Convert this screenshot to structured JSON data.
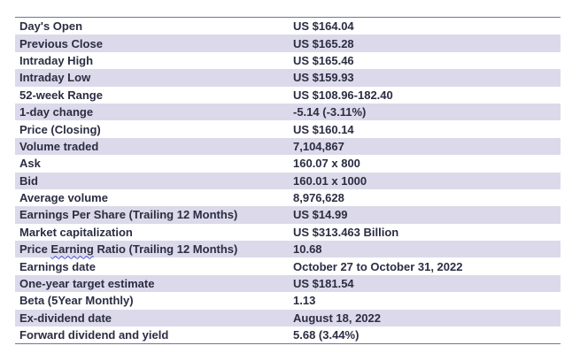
{
  "rows": [
    {
      "label": "Day's Open",
      "value": "US $164.04"
    },
    {
      "label": "Previous Close",
      "value": "US $165.28"
    },
    {
      "label": "Intraday High",
      "value": "US $165.46"
    },
    {
      "label": "Intraday Low",
      "value": "US $159.93"
    },
    {
      "label": "52-week Range",
      "value": "US $108.96-182.40"
    },
    {
      "label": "1-day change",
      "value": "-5.14 (-3.11%)"
    },
    {
      "label": "Price (Closing)",
      "value": "US $160.14"
    },
    {
      "label": "Volume traded",
      "value": "7,104,867"
    },
    {
      "label": "Ask",
      "value": "160.07 x 800"
    },
    {
      "label": "Bid",
      "value": "160.01 x 1000"
    },
    {
      "label": "Average volume",
      "value": "8,976,628"
    },
    {
      "label": "Earnings Per Share (Trailing 12 Months)",
      "value": "US $14.99"
    },
    {
      "label": "Market capitalization",
      "value": "US $313.463 Billion"
    },
    {
      "label_pre": "Price ",
      "label_mark": "Earning",
      "label_post": " Ratio (Trailing 12 Months)",
      "value": "10.68"
    },
    {
      "label": "Earnings date",
      "value": "October 27 to October 31, 2022"
    },
    {
      "label": "One-year target estimate",
      "value": "US $181.54"
    },
    {
      "label": "Beta (5Year Monthly)",
      "value": "1.13"
    },
    {
      "label": "Ex-dividend date",
      "value": "August 18, 2022"
    },
    {
      "label": "Forward dividend and yield",
      "value": "5.68 (3.44%)"
    }
  ],
  "colors": {
    "stripe": "#dcd9ea",
    "text": "#2b2d42",
    "rule": "#7a7396"
  }
}
